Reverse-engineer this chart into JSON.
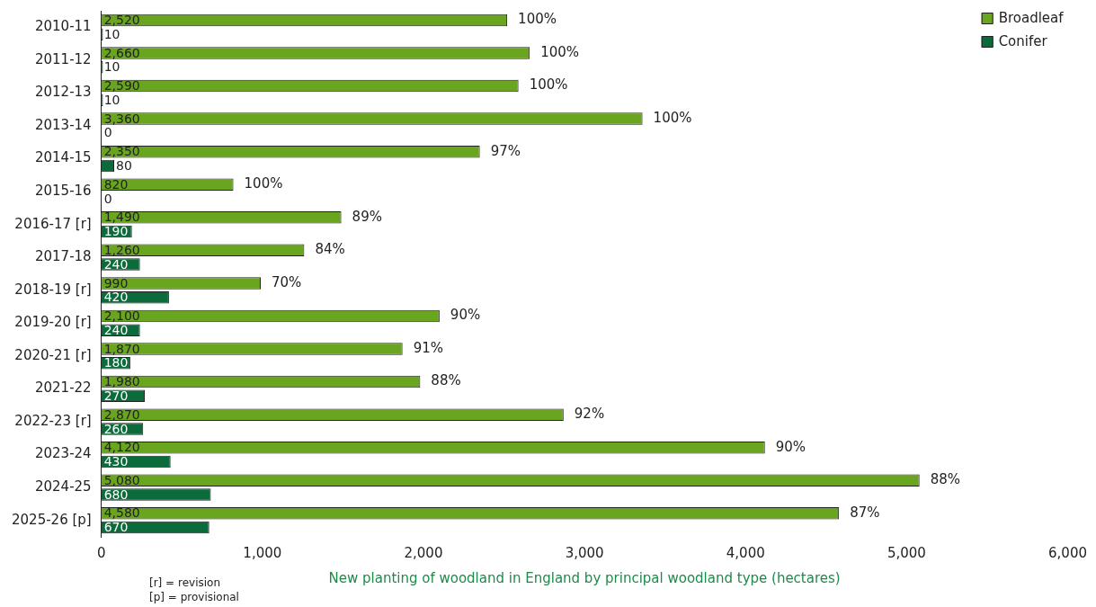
{
  "chart_data": {
    "type": "bar",
    "orientation": "horizontal",
    "xlabel": "New planting of woodland in England by principal woodland type (hectares)",
    "categories": [
      "2010-11",
      "2011-12",
      "2012-13",
      "2013-14",
      "2014-15",
      "2015-16",
      "2016-17 [r]",
      "2017-18",
      "2018-19 [r]",
      "2019-20 [r]",
      "2020-21 [r]",
      "2021-22",
      "2022-23 [r]",
      "2023-24",
      "2024-25",
      "2025-26 [p]"
    ],
    "series": [
      {
        "name": "Broadleaf",
        "color": "#6aa51f",
        "values": [
          2520,
          2660,
          2590,
          3360,
          2350,
          820,
          1490,
          1260,
          990,
          2100,
          1870,
          1980,
          2870,
          4120,
          5080,
          4580
        ],
        "value_labels": [
          "2,520",
          "2,660",
          "2,590",
          "3,360",
          "2,350",
          "820",
          "1,490",
          "1,260",
          "990",
          "2,100",
          "1,870",
          "1,980",
          "2,870",
          "4,120",
          "5,080",
          "4,580"
        ]
      },
      {
        "name": "Conifer",
        "color": "#0b6b3a",
        "values": [
          10,
          10,
          10,
          0,
          80,
          0,
          190,
          240,
          420,
          240,
          180,
          270,
          260,
          430,
          680,
          670
        ],
        "value_labels": [
          "10",
          "10",
          "10",
          "0",
          "80",
          "0",
          "190",
          "240",
          "420",
          "240",
          "180",
          "270",
          "260",
          "430",
          "680",
          "670"
        ]
      }
    ],
    "xlim": [
      0,
      6000
    ],
    "xticks": [
      {
        "value": 0,
        "label": "0"
      },
      {
        "value": 1000,
        "label": "1,000"
      },
      {
        "value": 2000,
        "label": "2,000"
      },
      {
        "value": 3000,
        "label": "3,000"
      },
      {
        "value": 4000,
        "label": "4,000"
      },
      {
        "value": 5000,
        "label": "5,000"
      },
      {
        "value": 6000,
        "label": "6,000"
      }
    ],
    "grid": false,
    "legend": "top right",
    "annotations": [
      {
        "text": "100%",
        "x": 2520,
        "y": "2010-11"
      },
      {
        "text": "100%",
        "x": 2660,
        "y": "2011-12"
      },
      {
        "text": "100%",
        "x": 2590,
        "y": "2012-13"
      },
      {
        "text": "100%",
        "x": 3360,
        "y": "2013-14"
      },
      {
        "text": "97%",
        "x": 2350,
        "y": "2014-15"
      },
      {
        "text": "100%",
        "x": 820,
        "y": "2015-16"
      },
      {
        "text": "89%",
        "x": 1490,
        "y": "2016-17 [r]"
      },
      {
        "text": "84%",
        "x": 1260,
        "y": "2017-18"
      },
      {
        "text": "70%",
        "x": 990,
        "y": "2018-19 [r]"
      },
      {
        "text": "90%",
        "x": 2100,
        "y": "2019-20 [r]"
      },
      {
        "text": "91%",
        "x": 1870,
        "y": "2020-21 [r]"
      },
      {
        "text": "88%",
        "x": 1980,
        "y": "2021-22"
      },
      {
        "text": "92%",
        "x": 2870,
        "y": "2022-23 [r]"
      },
      {
        "text": "90%",
        "x": 4120,
        "y": "2023-24"
      },
      {
        "text": "88%",
        "x": 5080,
        "y": "2024-25"
      },
      {
        "text": "87%",
        "x": 4580,
        "y": "2025-26 [p]"
      },
      "[r] = revision",
      "[p] = provisional"
    ]
  }
}
